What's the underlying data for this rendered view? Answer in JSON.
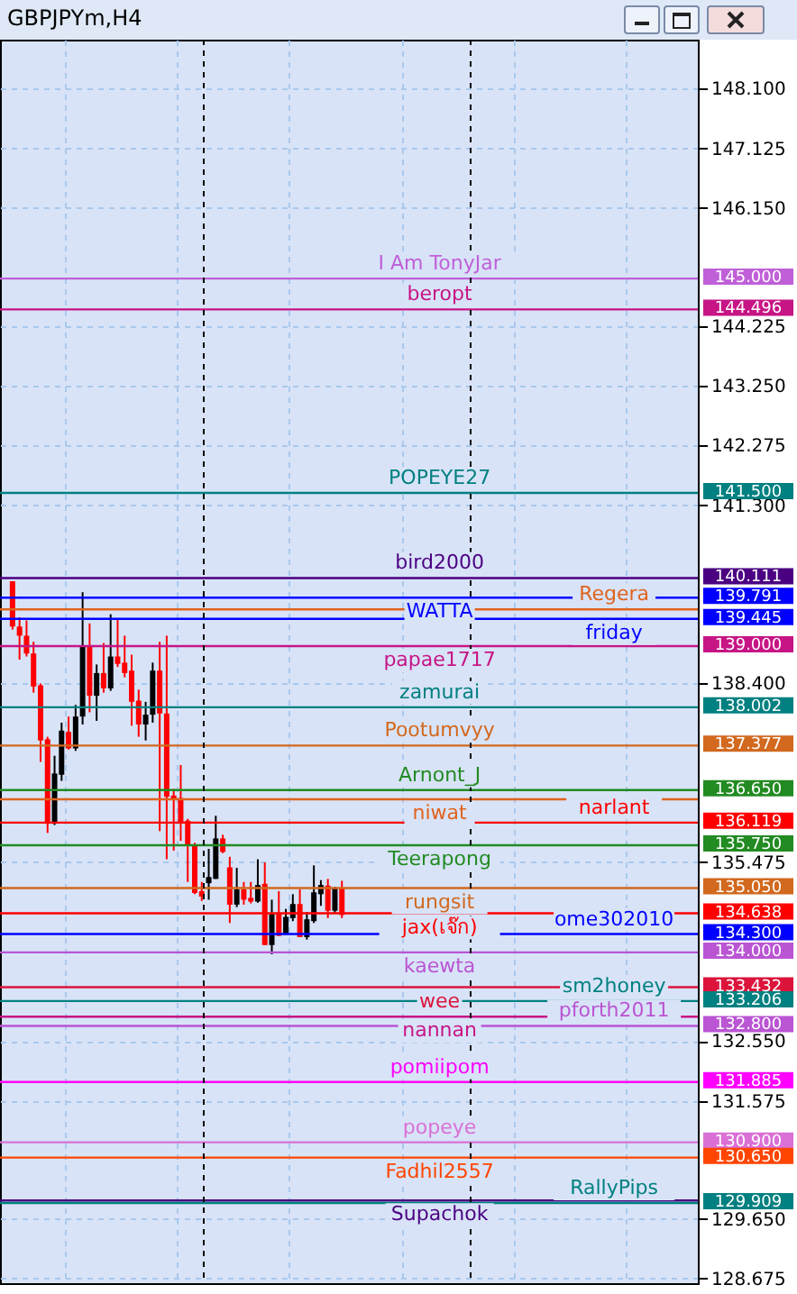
{
  "chart_data": {
    "type": "candlestick",
    "title": "GBPJPYm,H4",
    "categories": [
      null,
      null,
      null,
      null,
      null,
      null,
      null,
      null,
      null,
      null,
      null,
      null,
      null,
      null,
      null,
      null,
      null,
      null,
      null,
      null,
      null,
      null,
      null,
      null,
      null,
      null,
      null,
      null,
      null,
      null,
      null,
      null,
      null,
      null,
      null,
      null,
      null,
      null,
      null,
      null,
      null,
      null,
      null,
      null,
      null,
      null,
      null,
      null,
      null,
      null,
      null,
      null,
      null,
      null,
      null,
      null,
      null,
      null,
      null,
      null,
      null,
      null,
      null,
      null,
      null,
      null,
      null,
      null,
      null,
      null,
      null,
      null,
      null,
      null,
      null,
      null,
      null,
      null,
      null,
      null,
      null,
      null,
      null,
      null,
      null,
      null,
      null,
      null,
      null,
      null,
      null,
      null,
      null,
      null,
      null,
      null,
      null
    ],
    "ohlc": [
      [
        140.06,
        140.06,
        139.27,
        139.32
      ],
      [
        139.32,
        139.47,
        138.78,
        139.17
      ],
      [
        139.17,
        139.42,
        138.83,
        138.88
      ],
      [
        138.88,
        139.07,
        138.24,
        138.34
      ],
      [
        138.36,
        138.39,
        137.11,
        137.46
      ],
      [
        137.48,
        137.52,
        135.95,
        136.1
      ],
      [
        136.1,
        137.21,
        136.08,
        136.92
      ],
      [
        136.9,
        137.75,
        136.8,
        137.62
      ],
      [
        137.6,
        137.85,
        137.31,
        137.33
      ],
      [
        137.33,
        138.04,
        137.29,
        137.85
      ],
      [
        137.85,
        139.88,
        137.72,
        138.99
      ],
      [
        138.99,
        139.37,
        137.92,
        138.19
      ],
      [
        138.19,
        138.7,
        137.78,
        138.56
      ],
      [
        138.56,
        139.05,
        138.24,
        138.31
      ],
      [
        138.31,
        139.52,
        138.27,
        138.83
      ],
      [
        138.83,
        139.45,
        138.66,
        138.71
      ],
      [
        138.73,
        139.17,
        138.49,
        138.56
      ],
      [
        138.6,
        138.86,
        137.7,
        138.09
      ],
      [
        138.11,
        138.29,
        137.52,
        137.72
      ],
      [
        137.72,
        138.09,
        137.46,
        137.88
      ],
      [
        137.88,
        138.73,
        137.75,
        138.6
      ],
      [
        138.6,
        139.07,
        135.98,
        137.9
      ],
      [
        137.9,
        139.17,
        135.52,
        136.54
      ],
      [
        136.56,
        136.67,
        135.66,
        136.5
      ],
      [
        136.52,
        137.06,
        135.82,
        136.13
      ],
      [
        136.15,
        136.18,
        135.15,
        135.74
      ],
      [
        135.76,
        135.79,
        134.95,
        134.97
      ],
      [
        135.0,
        135.15,
        134.84,
        134.91
      ],
      [
        135.13,
        135.69,
        134.86,
        135.23
      ],
      [
        135.2,
        136.23,
        135.2,
        135.86
      ],
      [
        135.86,
        135.92,
        135.62,
        135.64
      ],
      [
        135.39,
        135.56,
        134.48,
        134.78
      ],
      [
        134.78,
        135.38,
        134.74,
        135.03
      ],
      [
        135.03,
        135.15,
        134.78,
        134.86
      ],
      [
        134.89,
        135.15,
        134.8,
        134.83
      ],
      [
        134.83,
        135.52,
        134.81,
        135.1
      ],
      [
        135.12,
        135.47,
        134.12,
        134.12
      ],
      [
        134.12,
        134.86,
        133.97,
        134.63
      ],
      [
        134.64,
        135.0,
        134.27,
        134.27
      ],
      [
        134.29,
        134.71,
        134.29,
        134.58
      ],
      [
        134.56,
        134.95,
        134.51,
        134.79
      ],
      [
        134.79,
        135.03,
        134.25,
        134.25
      ],
      [
        134.25,
        134.66,
        134.21,
        134.54
      ],
      [
        134.51,
        135.42,
        134.48,
        134.98
      ],
      [
        134.95,
        135.18,
        134.76,
        135.1
      ],
      [
        135.09,
        135.2,
        134.56,
        134.68
      ],
      [
        134.68,
        135.07,
        134.64,
        135.05
      ],
      [
        135.05,
        135.17,
        134.56,
        134.61
      ],
      null,
      null,
      null,
      null,
      null,
      null,
      null,
      null,
      null,
      null,
      null,
      null,
      null,
      null,
      null,
      null,
      null,
      null,
      null,
      null,
      null,
      null,
      null,
      null,
      null,
      null,
      null,
      null,
      null,
      null,
      null,
      null,
      null,
      null,
      null,
      null,
      null,
      null,
      null,
      null,
      null,
      null,
      null,
      null,
      null,
      null,
      null,
      null,
      null
    ],
    "colors": [
      "#ff0000",
      "#ff0000",
      "#ff0000",
      "#ff0000",
      "#ff0000",
      "#ff0000",
      "#000000",
      "#000000",
      "#ff0000",
      "#000000",
      "#000000",
      "#ff0000",
      "#000000",
      "#ff0000",
      "#000000",
      "#ff0000",
      "#ff0000",
      "#ff0000",
      "#ff0000",
      "#000000",
      "#000000",
      "#ff0000",
      "#ff0000",
      "#ff0000",
      "#ff0000",
      "#ff0000",
      "#ff0000",
      "#ff0000",
      "#000000",
      "#000000",
      "#ff0000",
      "#ff0000",
      "#000000",
      "#ff0000",
      "#ff0000",
      "#000000",
      "#ff0000",
      "#000000",
      "#ff0000",
      "#000000",
      "#000000",
      "#ff0000",
      "#000000",
      "#000000",
      "#000000",
      "#ff0000",
      "#000000",
      "#ff0000",
      null,
      null,
      null,
      null,
      null,
      null,
      null,
      null,
      null,
      null,
      null,
      null,
      null,
      null,
      null,
      null,
      null,
      null,
      null,
      null,
      null,
      null,
      null,
      null,
      null,
      null,
      null,
      null,
      null,
      null,
      null,
      null,
      null,
      null,
      null,
      null,
      null,
      null,
      null,
      null,
      null,
      null,
      null,
      null,
      null,
      null,
      null,
      null,
      null
    ],
    "ylim": [
      128.6,
      148.9
    ],
    "yticks": [
      {
        "value": 148.1,
        "label": "148.100"
      },
      {
        "value": 147.125,
        "label": "147.125"
      },
      {
        "value": 146.15,
        "label": "146.150"
      },
      {
        "value": 144.225,
        "label": "144.225"
      },
      {
        "value": 143.25,
        "label": "143.250"
      },
      {
        "value": 142.275,
        "label": "142.275"
      },
      {
        "value": 141.3,
        "label": "141.300"
      },
      {
        "value": 138.4,
        "label": "138.400"
      },
      {
        "value": 135.475,
        "label": "135.475"
      },
      {
        "value": 132.55,
        "label": "132.550"
      },
      {
        "value": 131.575,
        "label": "131.575"
      },
      {
        "value": 129.65,
        "label": "129.650"
      },
      {
        "value": 128.675,
        "label": "128.675"
      }
    ],
    "tick_labels": "y",
    "grid": true,
    "ref_lines": [
      {
        "axis": "y",
        "value": 145.0,
        "label": "I Am TonyJar",
        "color": "#c060d8"
      },
      {
        "axis": "y",
        "value": 144.496,
        "label": "beropt",
        "color": "#c71585"
      },
      {
        "axis": "y",
        "value": 141.5,
        "label": "POPEYE27",
        "color": "#008080"
      },
      {
        "axis": "y",
        "value": 140.111,
        "label": "bird2000",
        "color": "#4b0082"
      },
      {
        "axis": "y",
        "value": 139.791,
        "label": "WATTA",
        "color": "#0000ff"
      },
      {
        "axis": "y",
        "value": 139.6,
        "label": "Regera",
        "color": "#e0641e"
      },
      {
        "axis": "y",
        "value": 139.445,
        "label": "friday",
        "color": "#0000ff"
      },
      {
        "axis": "y",
        "value": 139.0,
        "label": "papae1717",
        "color": "#c71585"
      },
      {
        "axis": "y",
        "value": 138.002,
        "label": "zamurai",
        "color": "#008080"
      },
      {
        "axis": "y",
        "value": 137.377,
        "label": "Pootumvyy",
        "color": "#d2691e"
      },
      {
        "axis": "y",
        "value": 136.65,
        "label": "Arnont_J",
        "color": "#228b22"
      },
      {
        "axis": "y",
        "value": 136.5,
        "label": "niwat",
        "color": "#e0641e"
      },
      {
        "axis": "y",
        "value": 136.119,
        "label": "narlant",
        "color": "#ff0000"
      },
      {
        "axis": "y",
        "value": 135.75,
        "label": "Teerapong",
        "color": "#228b22"
      },
      {
        "axis": "y",
        "value": 135.05,
        "label": "rungsit",
        "color": "#d2691e"
      },
      {
        "axis": "y",
        "value": 134.638,
        "label": "jax(เจ๊ก)",
        "color": "#ff0000"
      },
      {
        "axis": "y",
        "value": 134.3,
        "label": "ome302010",
        "color": "#0000ff"
      },
      {
        "axis": "y",
        "value": 134.0,
        "label": "kaewta",
        "color": "#ba55d3"
      },
      {
        "axis": "y",
        "value": 133.432,
        "label": "wee",
        "color": "#dc143c"
      },
      {
        "axis": "y",
        "value": 133.206,
        "label": "sm2honey",
        "color": "#008080"
      },
      {
        "axis": "y",
        "value": 132.95,
        "label": "nannan",
        "color": "#c71585"
      },
      {
        "axis": "y",
        "value": 132.8,
        "label": "pforth2011",
        "color": "#ba55d3"
      },
      {
        "axis": "y",
        "value": 131.885,
        "label": "pomiipom",
        "color": "#ff00ff"
      },
      {
        "axis": "y",
        "value": 130.9,
        "label": "popeye",
        "color": "#da70d6"
      },
      {
        "axis": "y",
        "value": 130.65,
        "label": "Fadhil2557",
        "color": "#ff4500"
      },
      {
        "axis": "y",
        "value": 129.95,
        "label": "Supachok",
        "color": "#4b0082"
      },
      {
        "axis": "y",
        "value": 129.909,
        "label": "RallyPips",
        "color": "#008080"
      }
    ],
    "annotations": [
      "145.000",
      "144.496",
      "141.500",
      "140.111",
      "139.791",
      "139.445",
      "139.000",
      "138.002",
      "137.377",
      "136.650",
      "136.119",
      "135.750",
      "135.050",
      "134.638",
      "134.300",
      "134.000",
      "133.432",
      "133.206",
      "132.800",
      "131.885",
      "130.900",
      "130.650",
      "129.909"
    ]
  }
}
